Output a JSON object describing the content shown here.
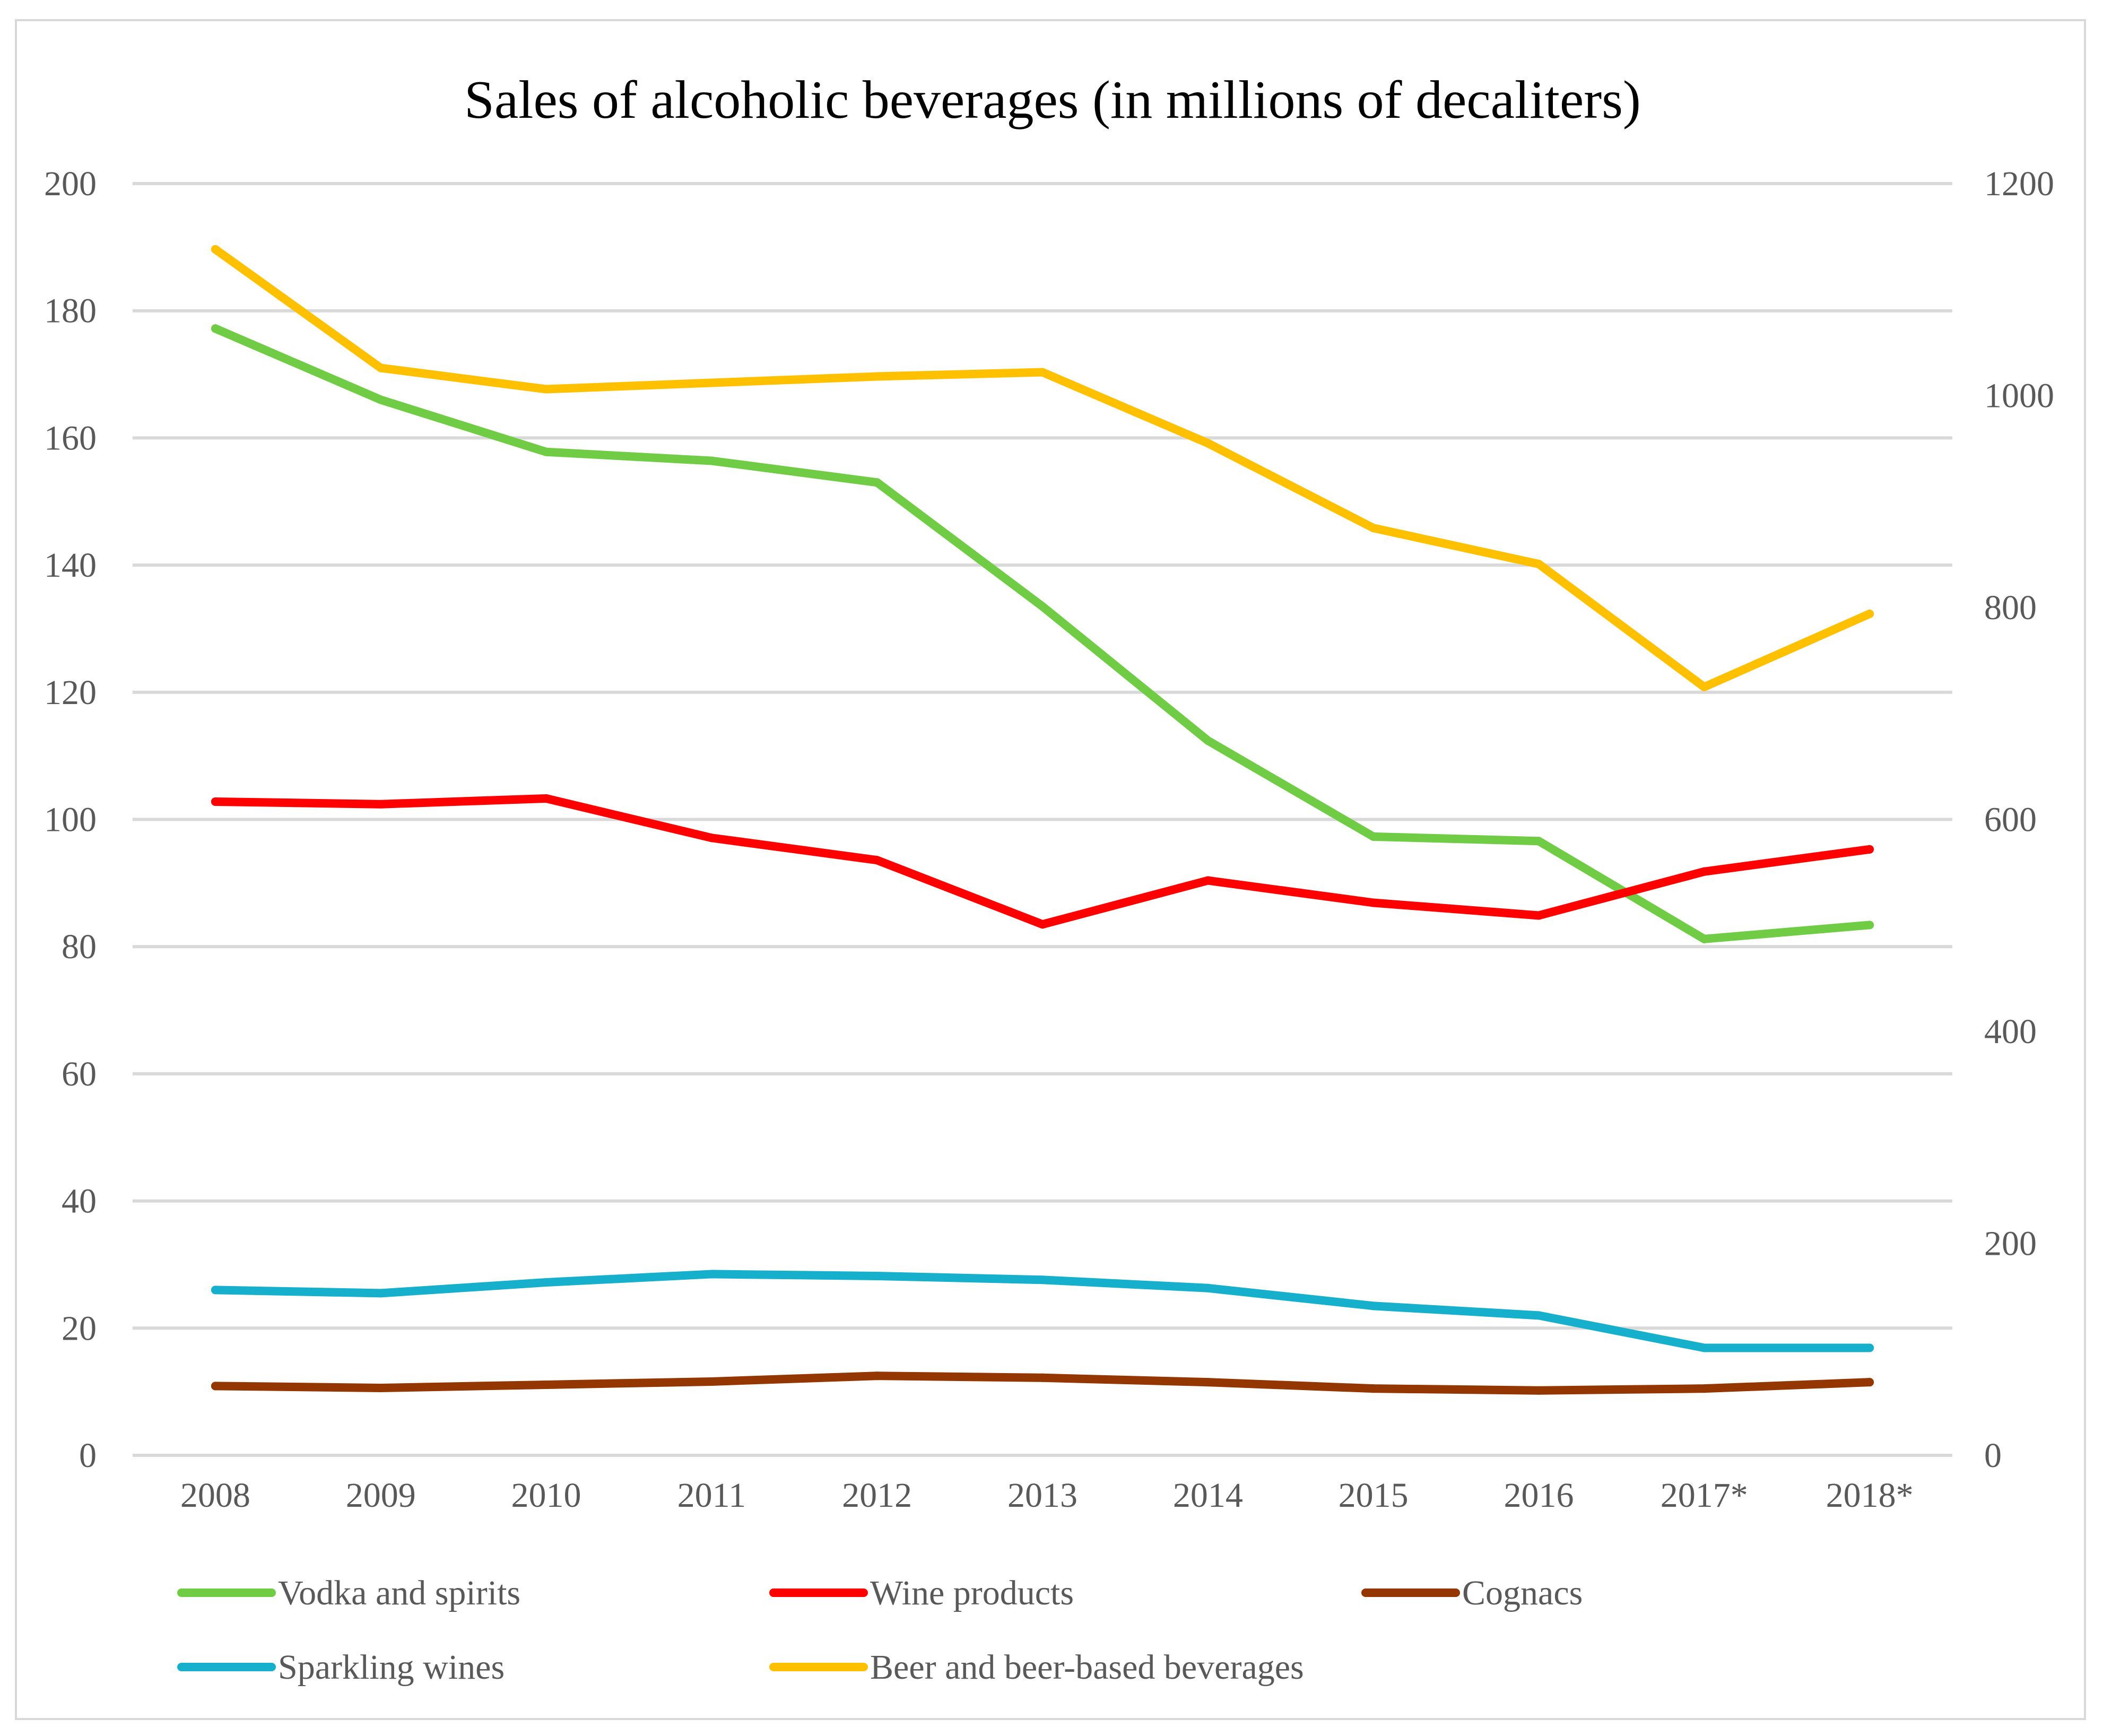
{
  "chart_data": {
    "type": "line",
    "title": "Sales of alcoholic beverages (in millions of decaliters)",
    "categories": [
      "2008",
      "2009",
      "2010",
      "2011",
      "2012",
      "2013",
      "2014",
      "2015",
      "2016",
      "2017*",
      "2018*"
    ],
    "y_left": {
      "min": 0,
      "max": 200,
      "ticks": [
        "0",
        "20",
        "40",
        "60",
        "80",
        "100",
        "120",
        "140",
        "160",
        "180",
        "200"
      ]
    },
    "y_right": {
      "min": 0,
      "max": 1200,
      "ticks": [
        "0",
        "200",
        "400",
        "600",
        "800",
        "1000",
        "1200"
      ]
    },
    "grid": true,
    "legend_position": "bottom",
    "series": [
      {
        "name": "Vodka and spirits",
        "color": "#70cc45",
        "axis": "left",
        "values": [
          177.2,
          166.0,
          157.8,
          156.4,
          153.0,
          133.5,
          112.4,
          97.3,
          96.6,
          81.2,
          83.4
        ]
      },
      {
        "name": "Wine products",
        "color": "#ff0000",
        "axis": "left",
        "values": [
          102.8,
          102.4,
          103.3,
          97.1,
          93.6,
          83.5,
          90.4,
          86.9,
          84.9,
          91.8,
          95.3
        ]
      },
      {
        "name": "Cognacs",
        "color": "#943600",
        "axis": "left",
        "values": [
          10.9,
          10.6,
          11.1,
          11.6,
          12.5,
          12.2,
          11.5,
          10.5,
          10.2,
          10.5,
          11.5
        ]
      },
      {
        "name": "Sparkling wines",
        "color": "#16b0cc",
        "axis": "left",
        "values": [
          26.0,
          25.5,
          27.2,
          28.5,
          28.2,
          27.6,
          26.3,
          23.5,
          22.0,
          16.9,
          16.9
        ]
      },
      {
        "name": "Beer and beer-based beverages",
        "color": "#ffc000",
        "axis": "right",
        "values": [
          1138,
          1026,
          1006,
          1012,
          1018,
          1022,
          955,
          875,
          841,
          725,
          794
        ]
      }
    ]
  }
}
